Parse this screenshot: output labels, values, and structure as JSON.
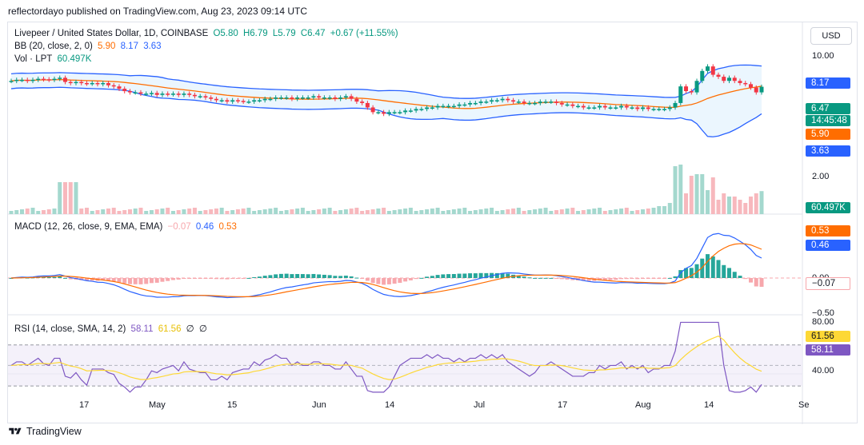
{
  "header": {
    "publisher": "reflectordayo published on TradingView.com, Aug 23, 2023 09:14 UTC"
  },
  "legend": {
    "title": "Livepeer / United States Dollar, 1D, COINBASE",
    "open": "O5.80",
    "high": "H6.79",
    "low": "L5.79",
    "close": "C6.47",
    "change": "+0.67 (+11.55%)",
    "bb_label": "BB (20, close, 2, 0)",
    "bb_mid": "5.90",
    "bb_upper": "8.17",
    "bb_lower": "3.63",
    "vol_label": "Vol · LPT",
    "vol_value": "60.497K",
    "macd_label": "MACD (12, 26, close, 9, EMA, EMA)",
    "macd_hist": "−0.07",
    "macd_line": "0.46",
    "macd_signal": "0.53",
    "rsi_label": "RSI (14, close, SMA, 14, 2)",
    "rsi_value": "58.11",
    "rsi_ma": "61.56",
    "rsi_extra1": "∅",
    "rsi_extra2": "∅"
  },
  "currency_button": "USD",
  "price_axis": {
    "ticks": [
      "10.00",
      "2.00"
    ],
    "badges": {
      "upper": "8.17",
      "last": "6.47",
      "countdown": "14:45:48",
      "mid": "5.90",
      "lower": "3.63",
      "volume": "60.497K"
    }
  },
  "macd_axis": {
    "ticks": [
      "0.00",
      "−0.50"
    ],
    "badges": {
      "signal": "0.53",
      "macd": "0.46",
      "hist": "−0.07"
    }
  },
  "rsi_axis": {
    "ticks": [
      "80.00",
      "40.00"
    ],
    "badges": {
      "ma": "61.56",
      "rsi": "58.11"
    }
  },
  "time_axis": [
    "17",
    "May",
    "15",
    "Jun",
    "14",
    "Jul",
    "17",
    "Aug",
    "14",
    "Se"
  ],
  "footer": {
    "brand": "TradingView"
  },
  "colors": {
    "up": "#089981",
    "down": "#f23645",
    "bb": "#2962ff",
    "bb_mid": "#ff6d00",
    "rsi": "#7e57c2",
    "rsi_ma": "#fdd835",
    "band_fill": "#e3f2fd"
  },
  "chart_data": {
    "type": "candlestick",
    "symbol": "LPT/USD",
    "interval": "1D",
    "last_bar": {
      "open": 5.8,
      "high": 6.79,
      "low": 5.79,
      "close": 6.47
    },
    "bollinger": {
      "period": 20,
      "mid": 5.9,
      "upper": 8.17,
      "lower": 3.63
    },
    "close_series": [
      7.0,
      7.1,
      7.1,
      7.0,
      7.1,
      7.2,
      7.15,
      7.1,
      7.2,
      7.3,
      6.9,
      6.8,
      6.9,
      6.8,
      6.75,
      6.8,
      6.7,
      6.8,
      6.6,
      6.5,
      6.3,
      6.1,
      6.0,
      6.0,
      5.9,
      5.9,
      5.95,
      5.8,
      5.9,
      5.85,
      5.9,
      5.8,
      5.9,
      5.8,
      5.7,
      5.7,
      5.6,
      5.5,
      5.4,
      5.4,
      5.3,
      5.4,
      5.35,
      5.3,
      5.3,
      5.4,
      5.4,
      5.5,
      5.5,
      5.6,
      5.6,
      5.6,
      5.5,
      5.6,
      5.6,
      5.6,
      5.7,
      5.6,
      5.6,
      5.6,
      5.5,
      5.6,
      5.7,
      5.5,
      5.3,
      5.2,
      4.9,
      4.6,
      4.6,
      4.5,
      4.6,
      4.6,
      4.6,
      4.7,
      4.7,
      4.8,
      4.8,
      4.9,
      4.9,
      5.0,
      5.0,
      5.0,
      5.0,
      5.1,
      5.1,
      5.2,
      5.2,
      5.3,
      5.3,
      5.4,
      5.4,
      5.5,
      5.4,
      5.3,
      5.3,
      5.2,
      5.2,
      5.2,
      5.3,
      5.3,
      5.3,
      5.2,
      5.1,
      5.1,
      5.0,
      5.0,
      4.9,
      4.9,
      4.9,
      5.0,
      4.9,
      4.9,
      4.9,
      5.0,
      4.9,
      4.9,
      4.8,
      4.9,
      4.8,
      4.8,
      4.8,
      4.8,
      4.9,
      5.2,
      6.5,
      6.1,
      6.0,
      7.0,
      8.0,
      8.5,
      7.6,
      7.4,
      7.0,
      7.3,
      7.0,
      6.8,
      6.7,
      6.4,
      6.0,
      6.47
    ]
  }
}
